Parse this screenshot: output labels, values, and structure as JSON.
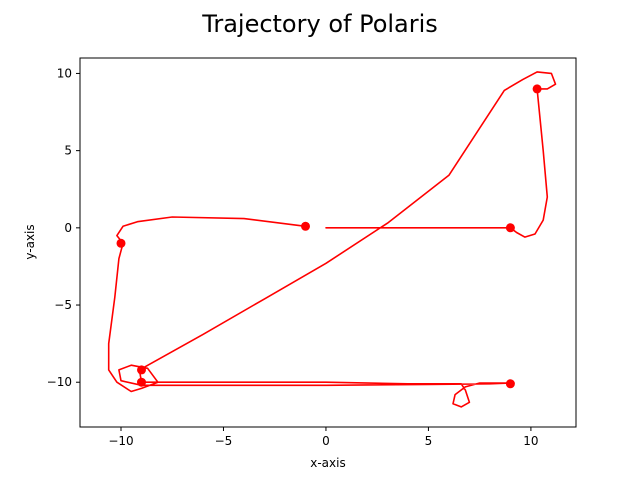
{
  "chart_data": {
    "type": "line",
    "title": "Trajectory of Polaris",
    "xlabel": "x-axis",
    "ylabel": "y-axis",
    "xlim": [
      -12,
      12.2
    ],
    "ylim": [
      -12.9,
      11
    ],
    "xticks": [
      -10,
      -5,
      0,
      5,
      10
    ],
    "yticks": [
      -10,
      -5,
      0,
      5,
      10
    ],
    "grid": false,
    "color": "#ff0000",
    "series": [
      {
        "points": [
          [
            -1,
            0.1
          ],
          [
            -4,
            0.6
          ],
          [
            -7.5,
            0.7
          ],
          [
            -9.2,
            0.4
          ],
          [
            -9.9,
            0.1
          ],
          [
            -10.2,
            -0.5
          ],
          [
            -9.9,
            -1
          ],
          [
            -10.1,
            -2
          ],
          [
            -10.3,
            -4.5
          ],
          [
            -10.6,
            -7.5
          ],
          [
            -10.6,
            -9.2
          ],
          [
            -10.2,
            -10
          ],
          [
            -9.5,
            -10.6
          ],
          [
            -9,
            -10.4
          ],
          [
            -8.2,
            -10
          ],
          [
            -8.7,
            -9.1
          ],
          [
            -9.5,
            -8.9
          ],
          [
            -10.1,
            -9.2
          ],
          [
            -10,
            -9.9
          ],
          [
            -9,
            -10.2
          ],
          [
            -7.5,
            -10.2
          ],
          [
            -5,
            -10.2
          ],
          [
            0,
            -10.2
          ],
          [
            5,
            -10.15
          ],
          [
            8,
            -10.1
          ],
          [
            9,
            -10.05
          ],
          [
            7.5,
            -10.05
          ],
          [
            6.8,
            -10.3
          ],
          [
            6.3,
            -10.8
          ],
          [
            6.2,
            -11.4
          ],
          [
            6.6,
            -11.6
          ],
          [
            7,
            -11.3
          ],
          [
            6.8,
            -10.5
          ],
          [
            6.6,
            -10.1
          ],
          [
            4,
            -10.1
          ],
          [
            0,
            -10
          ],
          [
            -4,
            -10
          ],
          [
            -9,
            -10
          ],
          [
            -9.1,
            -9.2
          ],
          [
            -6,
            -6.9
          ],
          [
            -3,
            -4.6
          ],
          [
            0,
            -2.3
          ],
          [
            3,
            0.3
          ],
          [
            6,
            3.4
          ],
          [
            8.7,
            8.9
          ],
          [
            9.6,
            9.6
          ],
          [
            10.3,
            10.1
          ],
          [
            11,
            10
          ],
          [
            11.2,
            9.3
          ],
          [
            10.8,
            9
          ],
          [
            10.3,
            9
          ],
          [
            10.6,
            5
          ],
          [
            10.8,
            2
          ],
          [
            10.6,
            0.5
          ],
          [
            10.2,
            -0.4
          ],
          [
            9.7,
            -0.6
          ],
          [
            9.3,
            -0.3
          ],
          [
            9,
            0
          ],
          [
            5,
            0
          ],
          [
            0,
            0
          ]
        ]
      }
    ],
    "markers": [
      [
        -1,
        0.1
      ],
      [
        -10,
        -1
      ],
      [
        -9,
        -9.2
      ],
      [
        -9,
        -10
      ],
      [
        9,
        -10.1
      ],
      [
        10.3,
        9
      ],
      [
        9,
        0
      ]
    ]
  }
}
